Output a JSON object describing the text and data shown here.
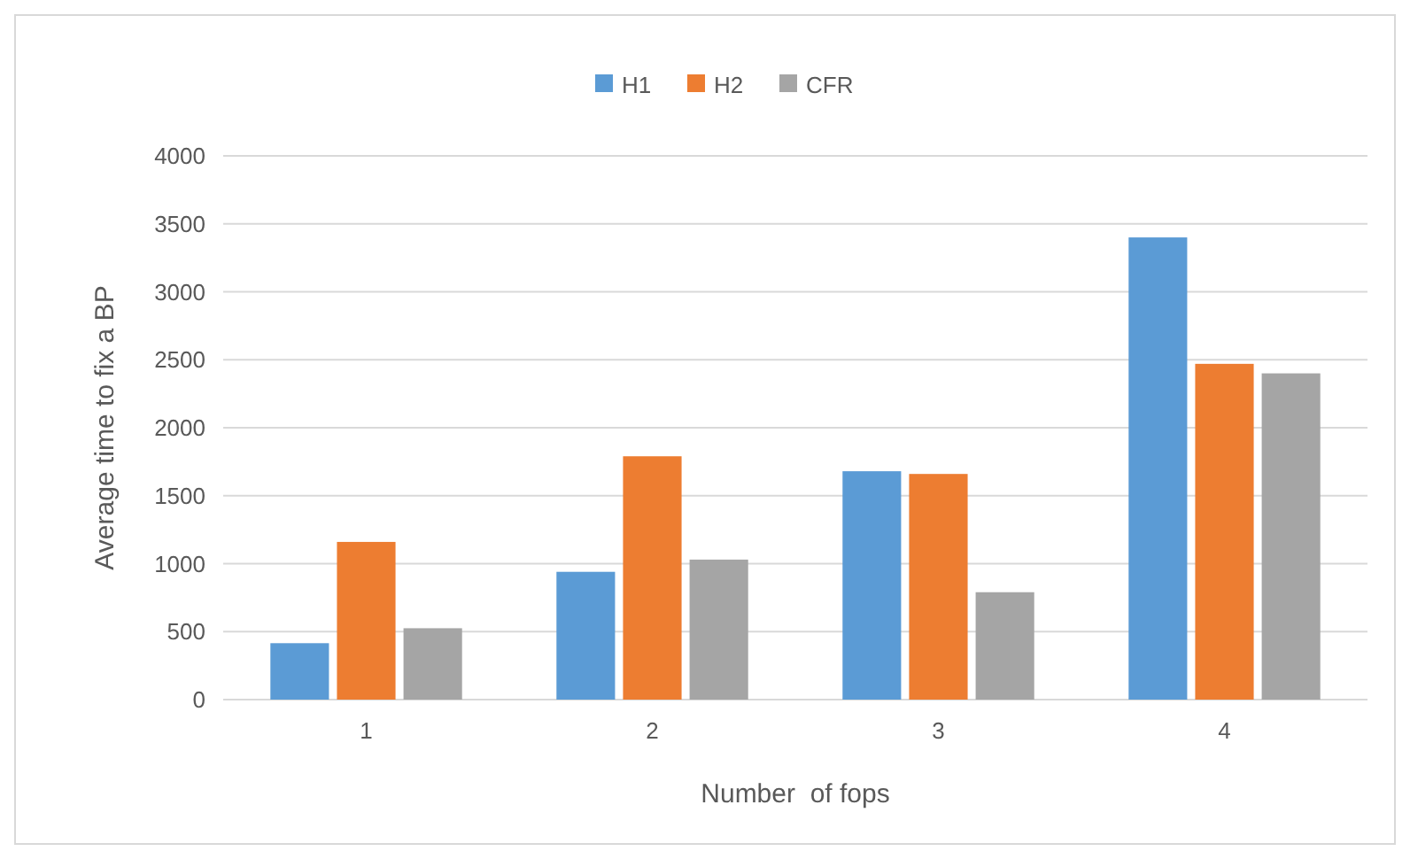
{
  "chart_data": {
    "type": "bar",
    "xlabel": "Number  of fops",
    "ylabel": "Average time to fix a BP",
    "categories": [
      "1",
      "2",
      "3",
      "4"
    ],
    "series": [
      {
        "name": "H1",
        "color": "#5b9bd5",
        "values": [
          415,
          940,
          1680,
          3400
        ]
      },
      {
        "name": "H2",
        "color": "#ed7d31",
        "values": [
          1160,
          1790,
          1660,
          2470
        ]
      },
      {
        "name": "CFR",
        "color": "#a5a5a5",
        "values": [
          525,
          1030,
          790,
          2400
        ]
      }
    ],
    "ylim": [
      0,
      4000
    ],
    "yticks": [
      0,
      500,
      1000,
      1500,
      2000,
      2500,
      3000,
      3500,
      4000
    ],
    "grid": "y",
    "legend": "top"
  }
}
